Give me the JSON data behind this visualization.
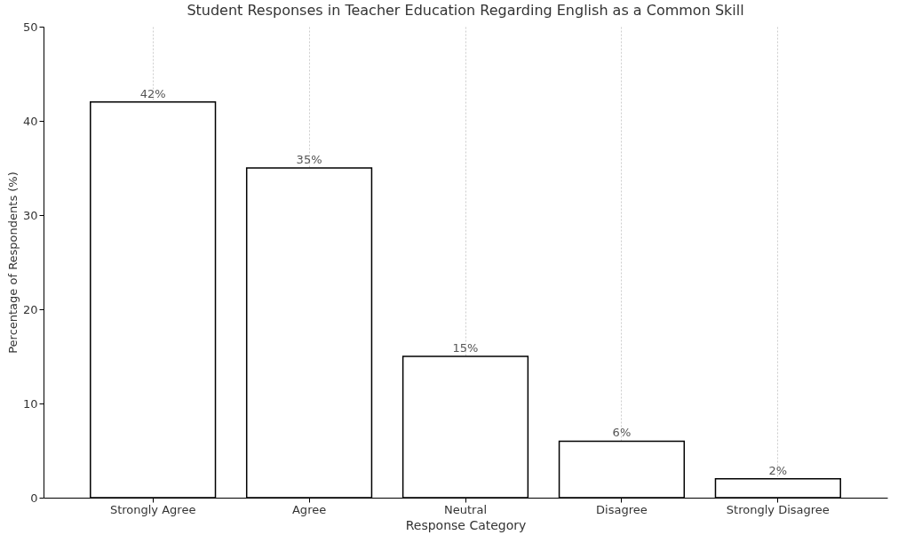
{
  "chart_data": {
    "type": "bar",
    "title": "Student Responses in Teacher Education Regarding English as a Common Skill",
    "xlabel": "Response Category",
    "ylabel": "Percentage of Respondents (%)",
    "categories": [
      "Strongly Agree",
      "Agree",
      "Neutral",
      "Disagree",
      "Strongly Disagree"
    ],
    "values": [
      42,
      35,
      15,
      6,
      2
    ],
    "value_labels": [
      "42%",
      "35%",
      "15%",
      "6%",
      "2%"
    ],
    "color": "#ffffff",
    "ylim": [
      0,
      50
    ],
    "yticks": [
      0,
      10,
      20,
      30,
      40,
      50
    ],
    "grid": "x"
  }
}
